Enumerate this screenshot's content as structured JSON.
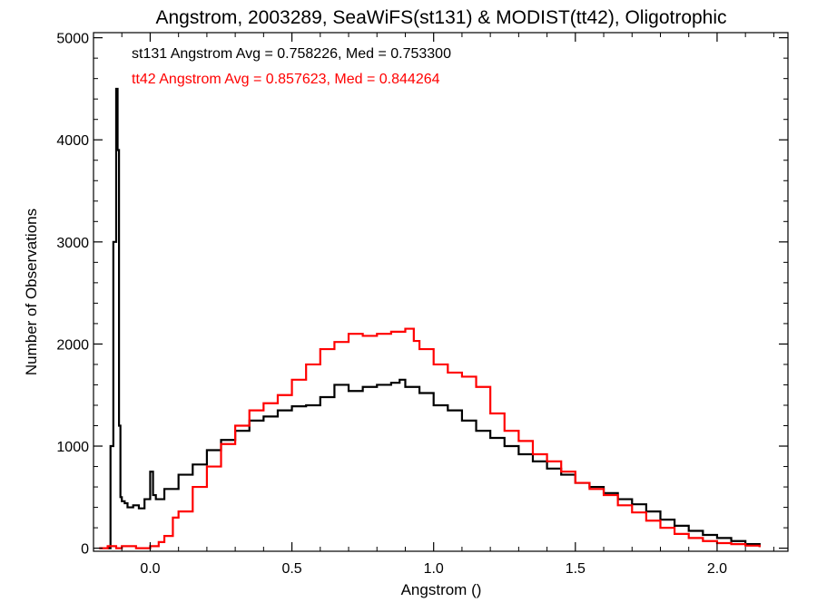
{
  "chart_data": {
    "type": "line",
    "title": "Angstrom, 2003289, SeaWiFS(st131) & MODIST(tt42), Oligotrophic",
    "xlabel": "Angstrom ()",
    "ylabel": "Number of Observations",
    "xlim": [
      -0.2,
      2.25
    ],
    "ylim": [
      -30,
      5050
    ],
    "x_ticks": [
      0.0,
      0.5,
      1.0,
      1.5,
      2.0
    ],
    "x_tick_labels": [
      "0.0",
      "0.5",
      "1.0",
      "1.5",
      "2.0"
    ],
    "y_ticks": [
      0,
      1000,
      2000,
      3000,
      4000,
      5000
    ],
    "y_tick_labels": [
      "0",
      "1000",
      "2000",
      "3000",
      "4000",
      "5000"
    ],
    "grid": false,
    "style": "step",
    "annotations": [
      {
        "text": "st131 Angstrom Avg = 0.758226, Med = 0.753300",
        "color": "#000000"
      },
      {
        "text": "tt42 Angstrom Avg = 0.857623, Med = 0.844264",
        "color": "#ff0000"
      }
    ],
    "series": [
      {
        "color": "#000000",
        "x": [
          -0.15,
          -0.14,
          -0.13,
          -0.12,
          -0.115,
          -0.11,
          -0.105,
          -0.1,
          -0.09,
          -0.08,
          -0.06,
          -0.04,
          -0.02,
          0.0,
          0.01,
          0.02,
          0.05,
          0.1,
          0.15,
          0.2,
          0.25,
          0.3,
          0.35,
          0.4,
          0.45,
          0.5,
          0.55,
          0.6,
          0.65,
          0.7,
          0.75,
          0.8,
          0.85,
          0.88,
          0.9,
          0.95,
          1.0,
          1.05,
          1.1,
          1.15,
          1.2,
          1.25,
          1.3,
          1.35,
          1.4,
          1.45,
          1.5,
          1.55,
          1.6,
          1.65,
          1.7,
          1.75,
          1.8,
          1.85,
          1.9,
          1.95,
          2.0,
          2.05,
          2.1,
          2.15
        ],
        "y": [
          0,
          1000,
          3000,
          4500,
          3900,
          1200,
          500,
          460,
          440,
          400,
          420,
          390,
          480,
          750,
          520,
          480,
          580,
          720,
          820,
          960,
          1060,
          1150,
          1250,
          1290,
          1350,
          1390,
          1400,
          1480,
          1600,
          1540,
          1580,
          1600,
          1620,
          1650,
          1580,
          1520,
          1400,
          1350,
          1250,
          1150,
          1080,
          1000,
          920,
          850,
          780,
          720,
          640,
          600,
          540,
          480,
          430,
          360,
          280,
          220,
          170,
          130,
          100,
          70,
          40,
          10
        ]
      },
      {
        "color": "#ff0000",
        "x": [
          -0.18,
          -0.15,
          -0.12,
          -0.1,
          -0.05,
          0.0,
          0.03,
          0.05,
          0.08,
          0.1,
          0.15,
          0.2,
          0.25,
          0.3,
          0.35,
          0.4,
          0.45,
          0.5,
          0.55,
          0.6,
          0.65,
          0.7,
          0.75,
          0.8,
          0.85,
          0.9,
          0.93,
          0.95,
          1.0,
          1.05,
          1.1,
          1.15,
          1.2,
          1.25,
          1.3,
          1.35,
          1.4,
          1.45,
          1.5,
          1.55,
          1.6,
          1.65,
          1.7,
          1.75,
          1.8,
          1.85,
          1.9,
          1.95,
          2.0,
          2.05,
          2.1,
          2.15
        ],
        "y": [
          0,
          20,
          0,
          20,
          0,
          20,
          60,
          120,
          300,
          360,
          600,
          800,
          1020,
          1200,
          1350,
          1420,
          1500,
          1650,
          1800,
          1950,
          2020,
          2100,
          2080,
          2100,
          2120,
          2150,
          2030,
          1950,
          1800,
          1720,
          1680,
          1580,
          1320,
          1150,
          1050,
          920,
          850,
          750,
          640,
          580,
          520,
          420,
          350,
          270,
          200,
          140,
          100,
          70,
          50,
          40,
          25,
          10
        ]
      }
    ]
  }
}
